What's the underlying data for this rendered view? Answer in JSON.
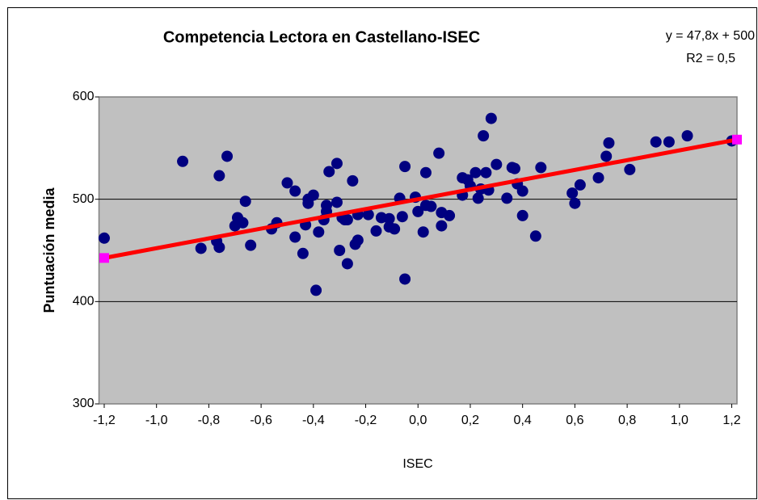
{
  "chart_data": {
    "type": "scatter",
    "title": "Competencia Lectora en Castellano-ISEC",
    "x_label": "ISEC",
    "y_label": "Puntuación media",
    "annotations": [
      "y = 47,8x + 500",
      "R2 = 0,5"
    ],
    "color": "#000080",
    "x": [
      -1.2,
      -0.9,
      -0.73,
      -0.76,
      -0.77,
      -0.76,
      -0.83,
      -0.69,
      -0.68,
      -0.67,
      -0.7,
      -0.66,
      -0.64,
      -0.56,
      -0.54,
      -0.5,
      -0.47,
      -0.47,
      -0.44,
      -0.43,
      -0.42,
      -0.42,
      -0.4,
      -0.39,
      -0.38,
      -0.36,
      -0.35,
      -0.35,
      -0.34,
      -0.31,
      -0.31,
      -0.3,
      -0.29,
      -0.28,
      -0.27,
      -0.27,
      -0.25,
      -0.24,
      -0.23,
      -0.23,
      -0.19,
      -0.16,
      -0.14,
      -0.11,
      -0.11,
      -0.09,
      -0.07,
      -0.06,
      -0.05,
      -0.05,
      -0.01,
      0.0,
      0.02,
      0.03,
      0.03,
      0.05,
      0.08,
      0.09,
      0.09,
      0.12,
      0.17,
      0.17,
      0.19,
      0.2,
      0.22,
      0.23,
      0.25,
      0.24,
      0.26,
      0.27,
      0.28,
      0.3,
      0.34,
      0.36,
      0.37,
      0.38,
      0.4,
      0.4,
      0.45,
      0.47,
      0.59,
      0.6,
      0.62,
      0.69,
      0.72,
      0.73,
      0.81,
      0.91,
      0.96,
      1.03,
      1.2
    ],
    "values": [
      462,
      537,
      542,
      523,
      459,
      453,
      452,
      482,
      478,
      477,
      474,
      498,
      455,
      471,
      477,
      516,
      508,
      463,
      447,
      475,
      496,
      500,
      504,
      411,
      468,
      480,
      494,
      488,
      527,
      535,
      497,
      450,
      482,
      480,
      480,
      437,
      518,
      456,
      460,
      485,
      485,
      469,
      482,
      473,
      481,
      471,
      501,
      483,
      532,
      422,
      502,
      488,
      468,
      526,
      494,
      493,
      545,
      474,
      487,
      484,
      521,
      504,
      519,
      513,
      526,
      501,
      562,
      510,
      526,
      509,
      579,
      534,
      501,
      531,
      530,
      515,
      508,
      484,
      464,
      531,
      506,
      496,
      514,
      521,
      542,
      555,
      529,
      556,
      556,
      562,
      557
    ],
    "trendline": {
      "x": [
        -1.2,
        1.22
      ],
      "values": [
        442.6,
        558.3
      ],
      "color": "#ff0000",
      "marker_color": "#ff00ff"
    },
    "xlim": [
      -1.22,
      1.22
    ],
    "ylim": [
      300,
      600
    ],
    "xticks": [
      {
        "value": -1.2,
        "label": "-1,2"
      },
      {
        "value": -1.0,
        "label": "-1,0"
      },
      {
        "value": -0.8,
        "label": "-0,8"
      },
      {
        "value": -0.6,
        "label": "-0,6"
      },
      {
        "value": -0.4,
        "label": "-0,4"
      },
      {
        "value": -0.2,
        "label": "-0,2"
      },
      {
        "value": 0,
        "label": "0,0"
      },
      {
        "value": 0.2,
        "label": "0,2"
      },
      {
        "value": 0.4,
        "label": "0,4"
      },
      {
        "value": 0.6,
        "label": "0,6"
      },
      {
        "value": 0.8,
        "label": "0,8"
      },
      {
        "value": 1.0,
        "label": "1,0"
      },
      {
        "value": 1.2,
        "label": "1,2"
      }
    ],
    "yticks": [
      300,
      400,
      500,
      600
    ],
    "grid": true
  }
}
